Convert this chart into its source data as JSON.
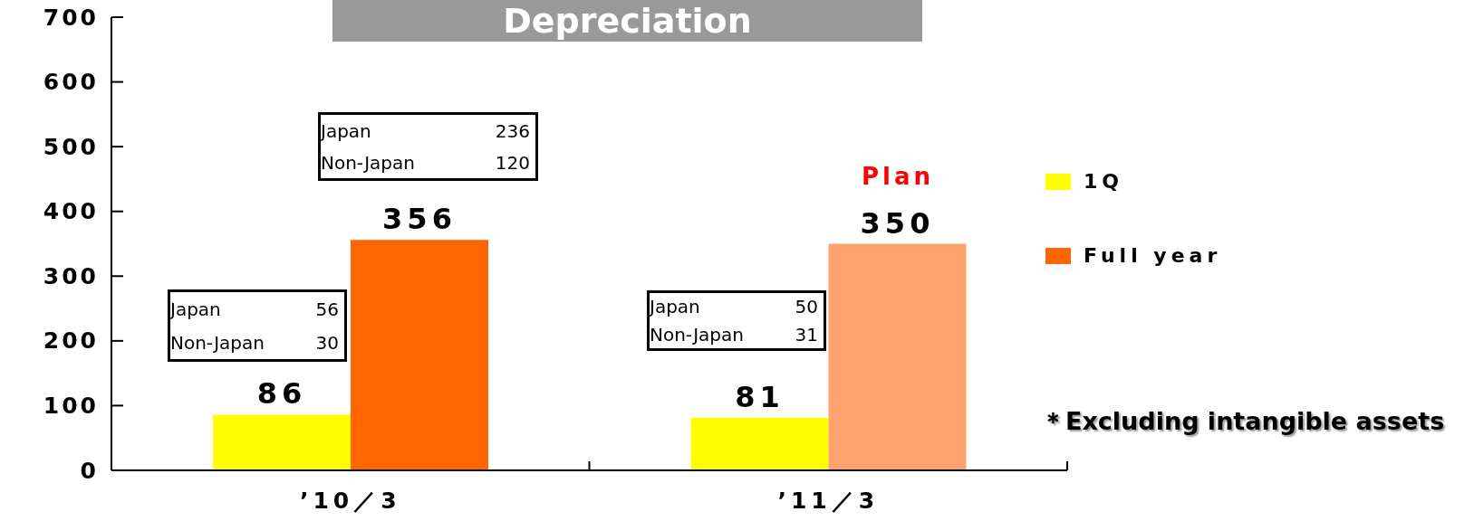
{
  "chart_data": {
    "type": "bar",
    "title": "Depreciation",
    "categories": [
      "’10／3",
      "’11／3"
    ],
    "series": [
      {
        "name": "1Q",
        "color": "#ffff00",
        "values": [
          86,
          81
        ]
      },
      {
        "name": "Full year",
        "color": "#ff6600",
        "colors": [
          "#ff6600",
          "#ffa36e"
        ],
        "values": [
          356,
          350
        ]
      }
    ],
    "ylim": [
      0,
      700
    ],
    "yticks": [
      0,
      100,
      200,
      300,
      400,
      500,
      600,
      700
    ],
    "data_labels": true,
    "legend": "right",
    "annotations": [
      "Japan 236\nNon-Japan 120",
      "Japan 56\nNon-Japan 30",
      "Plan",
      "Japan 50\nNon-Japan 31",
      "＊Excluding intangible assets"
    ]
  }
}
